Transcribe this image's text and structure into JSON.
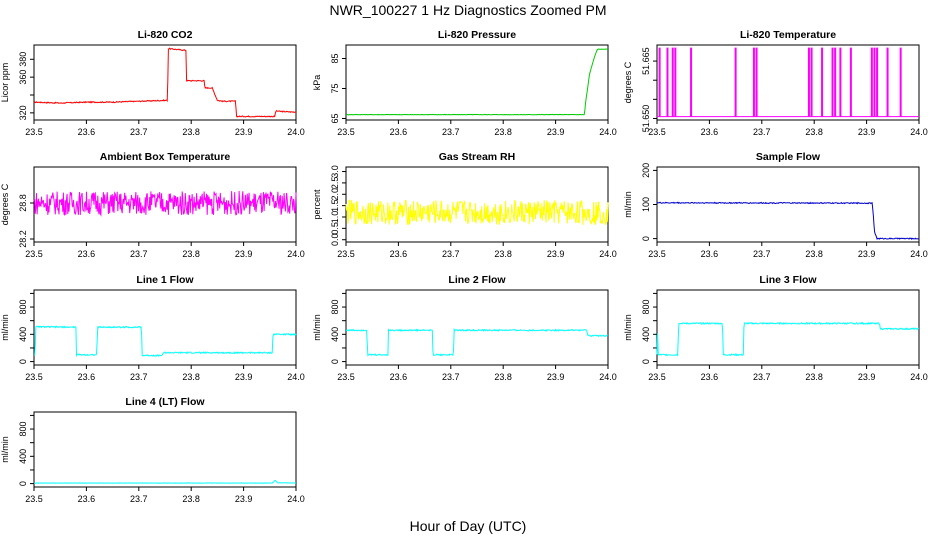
{
  "page": {
    "title": "NWR_100227  1 Hz Diagnostics Zoomed PM",
    "xlabel": "Hour of Day (UTC)"
  },
  "chart_data": [
    {
      "type": "line",
      "title": "Li-820 CO2",
      "ylabel": "Licor ppm",
      "color": "#ff0000",
      "xlim": [
        23.5,
        24.0
      ],
      "xticks": [
        23.5,
        23.6,
        23.7,
        23.8,
        23.9,
        24.0
      ],
      "xticklabels": [
        "23.5",
        "23.6",
        "23.7",
        "23.8",
        "23.9",
        "24.0"
      ],
      "ylim": [
        312,
        396
      ],
      "yticks": [
        320,
        340,
        360,
        380
      ],
      "yticklabels": [
        "320",
        "",
        "360",
        "380"
      ],
      "noise": 0.6,
      "x": [
        23.5,
        23.55,
        23.6,
        23.65,
        23.7,
        23.75,
        23.755,
        23.756,
        23.79,
        23.791,
        23.825,
        23.826,
        23.84,
        23.85,
        23.851,
        23.86,
        23.885,
        23.886,
        23.96,
        23.961,
        23.99,
        24.0
      ],
      "y": [
        332,
        331,
        332,
        332,
        333,
        334,
        334,
        392,
        390,
        356,
        356,
        348,
        348,
        334,
        334,
        333,
        333,
        316,
        316,
        322,
        321,
        321
      ]
    },
    {
      "type": "line",
      "title": "Li-820 Pressure",
      "ylabel": "kPa",
      "color": "#00cc00",
      "xlim": [
        23.5,
        24.0
      ],
      "xticks": [
        23.5,
        23.6,
        23.7,
        23.8,
        23.9,
        24.0
      ],
      "xticklabels": [
        "23.5",
        "23.6",
        "23.7",
        "23.8",
        "23.9",
        "24.0"
      ],
      "ylim": [
        64.5,
        89.5
      ],
      "yticks": [
        65,
        75,
        85
      ],
      "yticklabels": [
        "65",
        "75",
        "85"
      ],
      "noise": 0.08,
      "x": [
        23.5,
        23.7,
        23.9,
        23.955,
        23.957,
        23.965,
        23.975,
        23.98,
        24.0
      ],
      "y": [
        66.3,
        66.3,
        66.3,
        66.3,
        70,
        80,
        86,
        88.1,
        88.1
      ]
    },
    {
      "type": "line",
      "title": "Li-820 Temperature",
      "ylabel": "degrees C",
      "color": "#ff00ff",
      "xlim": [
        23.5,
        24.0
      ],
      "xticks": [
        23.5,
        23.6,
        23.7,
        23.8,
        23.9,
        24.0
      ],
      "xticklabels": [
        "23.5",
        "23.6",
        "23.7",
        "23.8",
        "23.9",
        "24.0"
      ],
      "ylim": [
        51.6496,
        51.6692
      ],
      "yticks": [
        51.65,
        51.655,
        51.66,
        51.665
      ],
      "yticklabels": [
        "51.650",
        "",
        "",
        "51.665"
      ],
      "noise": 0,
      "spikes_x": [
        23.505,
        23.52,
        23.53,
        23.535,
        23.565,
        23.65,
        23.685,
        23.69,
        23.69,
        23.79,
        23.795,
        23.815,
        23.835,
        23.84,
        23.85,
        23.87,
        23.91,
        23.915,
        23.92,
        23.94,
        23.965
      ],
      "spikes_y": [
        51.6685,
        51.6685,
        51.6685,
        51.6685,
        51.6685,
        51.6685,
        51.6685,
        51.6685,
        51.6575,
        51.6685,
        51.6685,
        51.6685,
        51.6685,
        51.6685,
        51.6685,
        51.6685,
        51.6685,
        51.6685,
        51.6685,
        51.6685,
        51.6685
      ],
      "x": [
        23.5,
        24.0
      ],
      "y": [
        51.6505,
        51.6505
      ]
    },
    {
      "type": "line",
      "title": "Ambient Box Temperature",
      "ylabel": "degrees C",
      "color": "#ff00ff",
      "xlim": [
        23.5,
        24.0
      ],
      "xticks": [
        23.5,
        23.6,
        23.7,
        23.8,
        23.9,
        24.0
      ],
      "xticklabels": [
        "23.5",
        "23.6",
        "23.7",
        "23.8",
        "23.9",
        "24.0"
      ],
      "ylim": [
        28.15,
        29.4
      ],
      "yticks": [
        28.2,
        28.8
      ],
      "yticklabels": [
        "28.2",
        "28.8"
      ],
      "noise": 0.2,
      "x": [
        23.5,
        24.0
      ],
      "y": [
        28.8,
        28.8
      ]
    },
    {
      "type": "line",
      "title": "Gas Stream RH",
      "ylabel": "percent",
      "color": "#ffff00",
      "xlim": [
        23.5,
        24.0
      ],
      "xticks": [
        23.5,
        23.6,
        23.7,
        23.8,
        23.9,
        24.0
      ],
      "xticklabels": [
        "23.5",
        "23.6",
        "23.7",
        "23.8",
        "23.9",
        "24.0"
      ],
      "ylim": [
        -0.1,
        3.2
      ],
      "yticks": [
        0,
        0.5,
        1,
        1.5,
        2,
        2.5,
        3
      ],
      "yticklabels": [
        "0.0",
        "0.5",
        "1.0",
        "1.5",
        "2.0",
        "2.5",
        "3.0"
      ],
      "noise": 0.55,
      "x": [
        23.5,
        24.0
      ],
      "y": [
        1.2,
        1.2
      ]
    },
    {
      "type": "line",
      "title": "Sample Flow",
      "ylabel": "ml/min",
      "color": "#0000cc",
      "xlim": [
        23.5,
        24.0
      ],
      "xticks": [
        23.5,
        23.6,
        23.7,
        23.8,
        23.9,
        24.0
      ],
      "xticklabels": [
        "23.5",
        "23.6",
        "23.7",
        "23.8",
        "23.9",
        "24.0"
      ],
      "ylim": [
        -10,
        210
      ],
      "yticks": [
        0,
        100,
        200
      ],
      "yticklabels": [
        "0",
        "100",
        "200"
      ],
      "noise": 1.5,
      "x": [
        23.5,
        23.91,
        23.911,
        23.915,
        23.92,
        24.0
      ],
      "y": [
        105,
        104,
        104,
        20,
        0,
        0
      ]
    },
    {
      "type": "line",
      "title": "Line 1 Flow",
      "ylabel": "ml/min",
      "color": "#00ffff",
      "xlim": [
        23.5,
        24.0
      ],
      "xticks": [
        23.5,
        23.6,
        23.7,
        23.8,
        23.9,
        24.0
      ],
      "xticklabels": [
        "23.5",
        "23.6",
        "23.7",
        "23.8",
        "23.9",
        "24.0"
      ],
      "ylim": [
        -50,
        1050
      ],
      "yticks": [
        0,
        200,
        400,
        600,
        800,
        1000
      ],
      "yticklabels": [
        "0",
        "",
        "400",
        "",
        "800",
        ""
      ],
      "noise": 10,
      "x": [
        23.5,
        23.502,
        23.503,
        23.58,
        23.581,
        23.62,
        23.621,
        23.705,
        23.706,
        23.745,
        23.746,
        23.955,
        23.956,
        24.0
      ],
      "y": [
        100,
        100,
        510,
        505,
        100,
        100,
        505,
        505,
        90,
        90,
        130,
        130,
        400,
        400
      ]
    },
    {
      "type": "line",
      "title": "Line 2 Flow",
      "ylabel": "ml/min",
      "color": "#00ffff",
      "xlim": [
        23.5,
        24.0
      ],
      "xticks": [
        23.5,
        23.6,
        23.7,
        23.8,
        23.9,
        24.0
      ],
      "xticklabels": [
        "23.5",
        "23.6",
        "23.7",
        "23.8",
        "23.9",
        "24.0"
      ],
      "ylim": [
        -50,
        1050
      ],
      "yticks": [
        0,
        200,
        400,
        600,
        800,
        1000
      ],
      "yticklabels": [
        "0",
        "",
        "400",
        "",
        "800",
        ""
      ],
      "noise": 10,
      "x": [
        23.5,
        23.54,
        23.541,
        23.58,
        23.581,
        23.665,
        23.666,
        23.705,
        23.706,
        23.96,
        23.961,
        24.0
      ],
      "y": [
        460,
        460,
        100,
        100,
        460,
        460,
        100,
        100,
        460,
        460,
        380,
        380
      ]
    },
    {
      "type": "line",
      "title": "Line 3 Flow",
      "ylabel": "ml/min",
      "color": "#00ffff",
      "xlim": [
        23.5,
        24.0
      ],
      "xticks": [
        23.5,
        23.6,
        23.7,
        23.8,
        23.9,
        24.0
      ],
      "xticklabels": [
        "23.5",
        "23.6",
        "23.7",
        "23.8",
        "23.9",
        "24.0"
      ],
      "ylim": [
        -50,
        1050
      ],
      "yticks": [
        0,
        200,
        400,
        600,
        800,
        1000
      ],
      "yticklabels": [
        "0",
        "",
        "400",
        "",
        "800",
        ""
      ],
      "noise": 10,
      "x": [
        23.5,
        23.501,
        23.502,
        23.54,
        23.541,
        23.625,
        23.626,
        23.665,
        23.666,
        23.925,
        23.926,
        24.0
      ],
      "y": [
        100,
        500,
        100,
        100,
        560,
        560,
        100,
        100,
        560,
        560,
        480,
        480
      ]
    },
    {
      "type": "line",
      "title": "Line 4 (LT) Flow",
      "ylabel": "ml/min",
      "color": "#00ffff",
      "xlim": [
        23.5,
        24.0
      ],
      "xticks": [
        23.5,
        23.6,
        23.7,
        23.8,
        23.9,
        24.0
      ],
      "xticklabels": [
        "23.5",
        "23.6",
        "23.7",
        "23.8",
        "23.9",
        "24.0"
      ],
      "ylim": [
        -50,
        1050
      ],
      "yticks": [
        0,
        200,
        400,
        600,
        800,
        1000
      ],
      "yticklabels": [
        "0",
        "",
        "400",
        "",
        "800",
        ""
      ],
      "noise": 2,
      "x": [
        23.5,
        23.955,
        23.96,
        23.965,
        24.0
      ],
      "y": [
        8,
        8,
        50,
        10,
        8
      ]
    }
  ]
}
